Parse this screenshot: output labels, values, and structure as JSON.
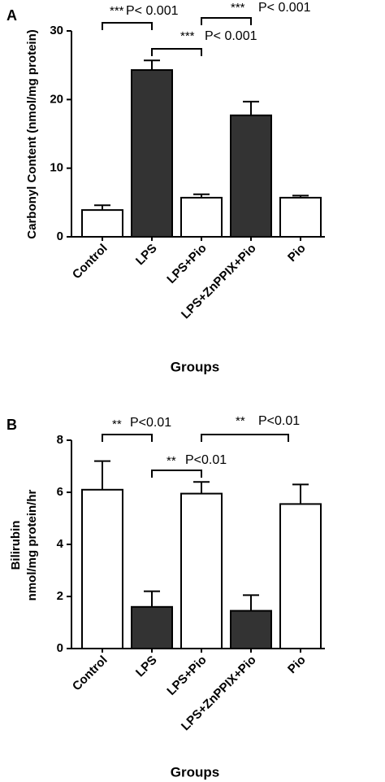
{
  "chart_data": [
    {
      "type": "bar",
      "panel_label": "A",
      "y_label": [
        "Carbonyl Content (nmol/mg protein)"
      ],
      "x_label": "Groups",
      "categories": [
        "Control",
        "LPS",
        "LPS+Pio",
        "LPS+ZnPPIX+Pio",
        "Pio"
      ],
      "values": [
        3.9,
        24.3,
        5.7,
        17.7,
        5.7
      ],
      "errors": [
        0.7,
        1.4,
        0.5,
        2.0,
        0.3
      ],
      "colors": [
        "#ffffff",
        "#333333",
        "#ffffff",
        "#333333",
        "#ffffff"
      ],
      "ylim": [
        0,
        30
      ],
      "yticks": [
        0,
        10,
        20,
        30
      ],
      "annotations": [
        {
          "stars": "***",
          "text": "P< 0.001"
        },
        {
          "stars": "***",
          "text": "P< 0.001"
        },
        {
          "stars": "***",
          "text": "P< 0.001"
        }
      ]
    },
    {
      "type": "bar",
      "panel_label": "B",
      "y_label": [
        "Bilirubin",
        "nmol/mg protein/hr"
      ],
      "x_label": "Groups",
      "categories": [
        "Control",
        "LPS",
        "LPS+Pio",
        "LPS+ZnPPIX+Pio",
        "Pio"
      ],
      "values": [
        6.1,
        1.6,
        5.95,
        1.45,
        5.55
      ],
      "errors": [
        1.1,
        0.6,
        0.45,
        0.6,
        0.75
      ],
      "colors": [
        "#ffffff",
        "#333333",
        "#ffffff",
        "#333333",
        "#ffffff"
      ],
      "ylim": [
        0,
        8
      ],
      "yticks": [
        0,
        2,
        4,
        6,
        8
      ],
      "annotations": [
        {
          "stars": "**",
          "text": "P<0.01"
        },
        {
          "stars": "**",
          "text": "P<0.01"
        },
        {
          "stars": "**",
          "text": "P<0.01"
        }
      ]
    }
  ]
}
